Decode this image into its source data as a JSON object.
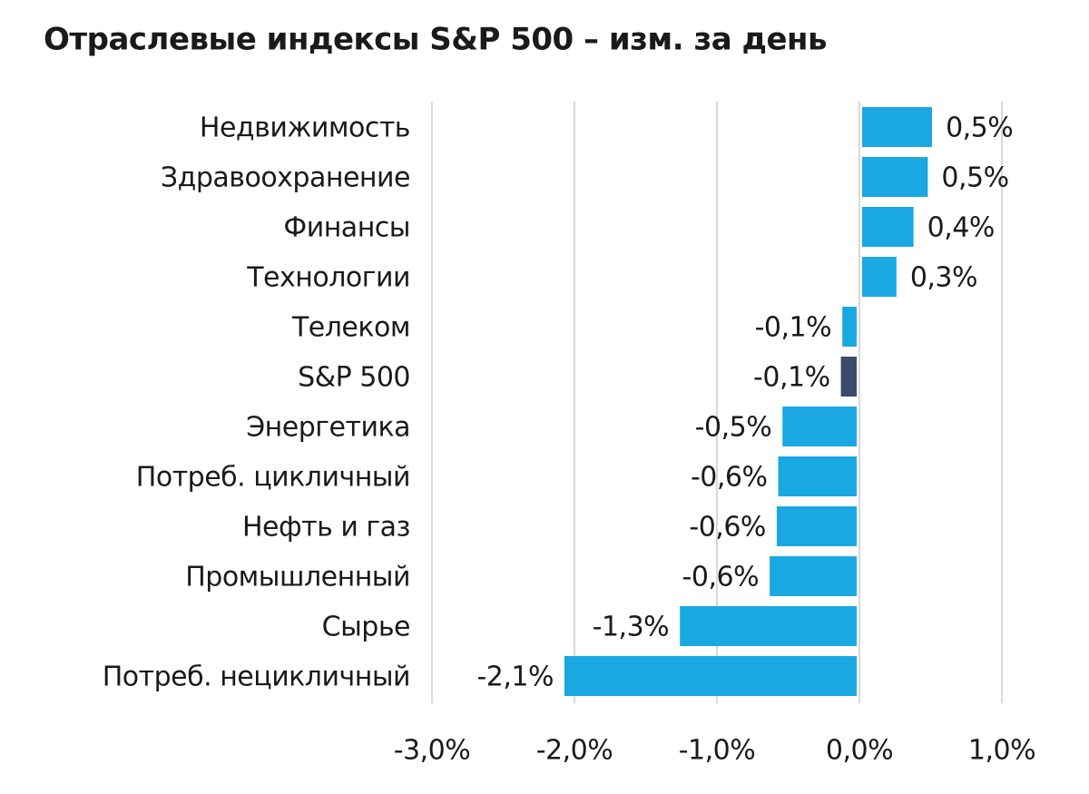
{
  "chart_data": {
    "type": "barh",
    "title": "Отраслевые индексы S&P 500 – изм. за день",
    "categories": [
      "Недвижимость",
      "Здравоохранение",
      "Финансы",
      "Технологии",
      "Телеком",
      "S&P 500",
      "Энергетика",
      "Потреб. цикличный",
      "Нефть и газ",
      "Промышленный",
      "Сырье",
      "Потреб. нецикличный"
    ],
    "values": [
      0.51,
      0.48,
      0.38,
      0.26,
      -0.12,
      -0.13,
      -0.54,
      -0.57,
      -0.58,
      -0.63,
      -1.26,
      -2.07
    ],
    "value_labels": [
      "0,5%",
      "0,5%",
      "0,4%",
      "0,3%",
      "-0,1%",
      "-0,1%",
      "-0,5%",
      "-0,6%",
      "-0,6%",
      "-0,6%",
      "-1,3%",
      "-2,1%"
    ],
    "colors": [
      "#1aa8e2",
      "#1aa8e2",
      "#1aa8e2",
      "#1aa8e2",
      "#1aa8e2",
      "#3c4a6c",
      "#1aa8e2",
      "#1aa8e2",
      "#1aa8e2",
      "#1aa8e2",
      "#1aa8e2",
      "#1aa8e2"
    ],
    "xlim": [
      -3,
      1
    ],
    "xticks": [
      {
        "value": -3,
        "label": "-3,0%"
      },
      {
        "value": -2,
        "label": "-2,0%"
      },
      {
        "value": -1,
        "label": "-1,0%"
      },
      {
        "value": 0,
        "label": "0,0%"
      },
      {
        "value": 1,
        "label": "1,0%"
      }
    ],
    "grid": true
  }
}
